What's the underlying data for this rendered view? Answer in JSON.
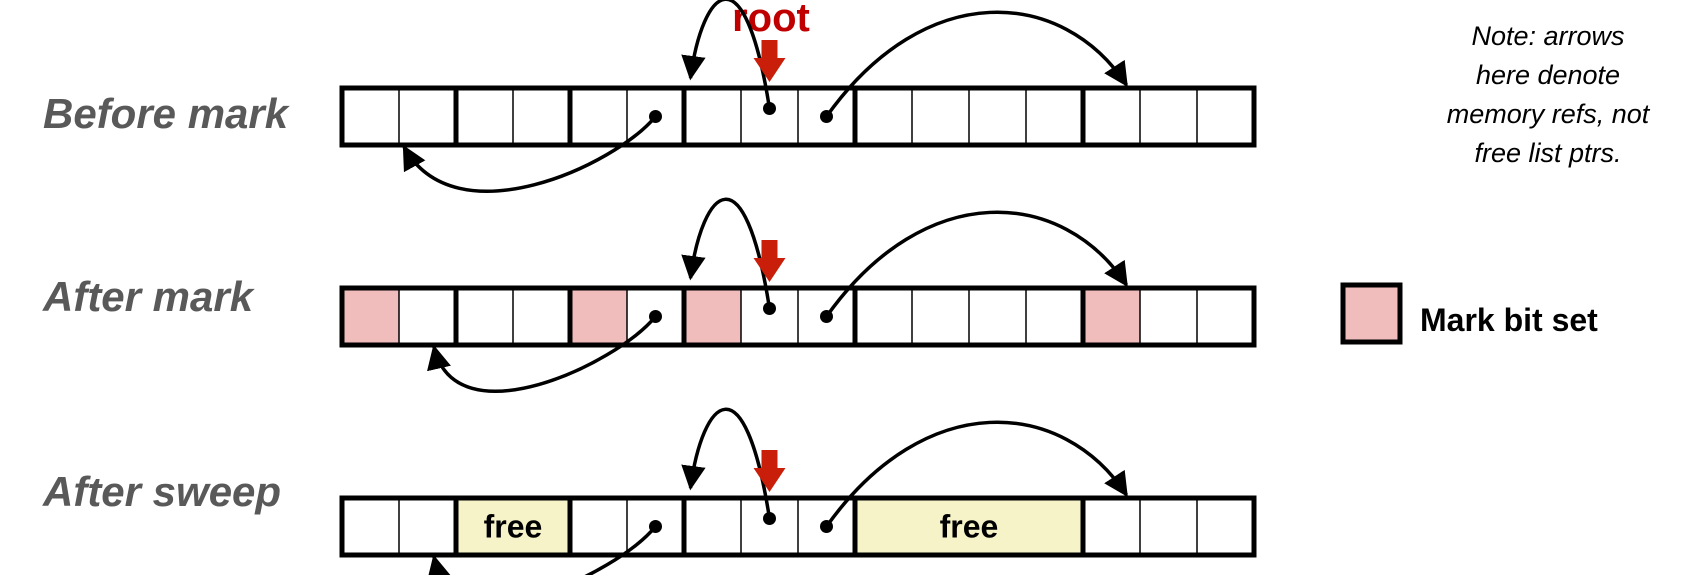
{
  "rows": [
    {
      "label": "Before mark",
      "marked": [],
      "free": []
    },
    {
      "label": "After mark",
      "marked": [
        0,
        4,
        6,
        13
      ],
      "free": []
    },
    {
      "label": "After sweep",
      "marked": [],
      "free": [
        [
          2,
          3
        ],
        [
          9,
          12
        ]
      ]
    }
  ],
  "root_label": "root",
  "free_label": "free",
  "note": {
    "lines": [
      "Note: arrows",
      "here denote",
      "memory refs, not",
      "free list ptrs."
    ]
  },
  "legend": {
    "label": "Mark bit set"
  },
  "heap": {
    "word_count": 16,
    "block_boundaries": [
      0,
      2,
      4,
      6,
      9,
      13,
      16
    ],
    "pointer_words": [
      5,
      7,
      8
    ],
    "root_word": 7
  },
  "colors": {
    "mark": "#f0bcbc",
    "free": "#f6f3c8",
    "root": "#c81e0a",
    "row_label": "#595959",
    "ink": "#000000"
  }
}
